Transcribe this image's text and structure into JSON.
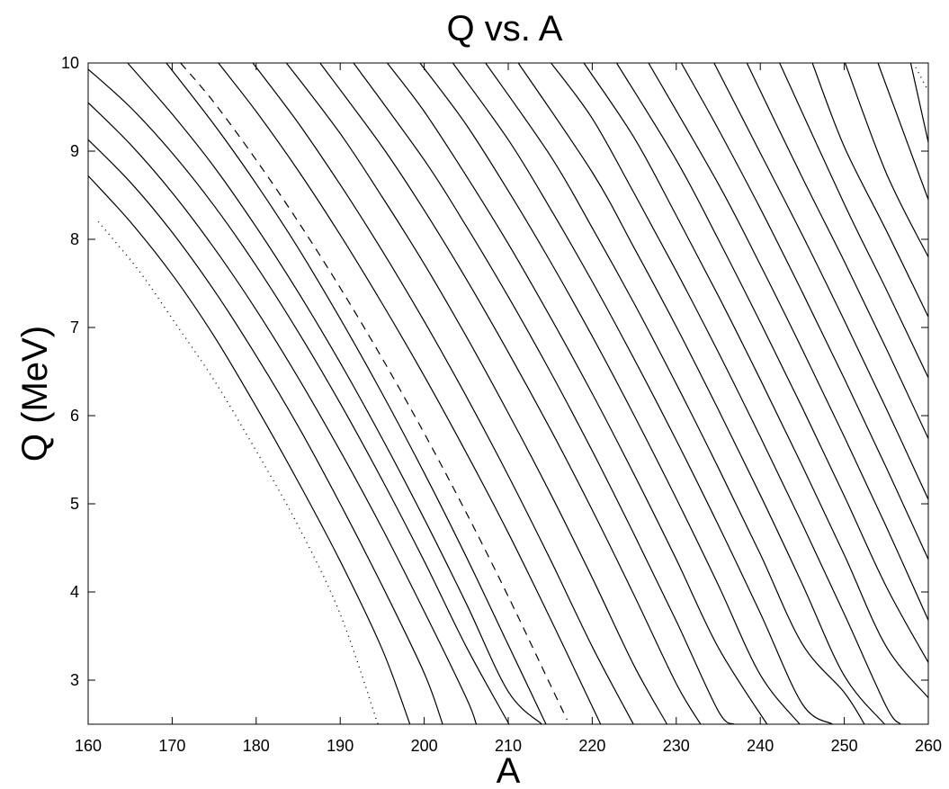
{
  "chart_data": {
    "type": "line",
    "title": "Q vs. A",
    "xlabel": "A",
    "ylabel": "Q (MeV)",
    "xlim": [
      160,
      260
    ],
    "ylim": [
      2.5,
      10
    ],
    "xticks": [
      "160",
      "170",
      "180",
      "190",
      "200",
      "210",
      "220",
      "230",
      "240",
      "250",
      "260"
    ],
    "yticks": [
      "3",
      "4",
      "5",
      "6",
      "7",
      "8",
      "9",
      "10"
    ],
    "grid": false,
    "legend": "none",
    "line_color": "#000000",
    "x_range_note": "A",
    "series": [
      {
        "style": "dotted",
        "points": [
          [
            161.2,
            8.2
          ],
          [
            166,
            7.65
          ],
          [
            170,
            7.1
          ],
          [
            175,
            6.4
          ],
          [
            180,
            5.6
          ],
          [
            185,
            4.75
          ],
          [
            190,
            3.75
          ],
          [
            194.5,
            2.5
          ]
        ]
      },
      {
        "style": "solid",
        "points": [
          [
            160,
            8.72
          ],
          [
            165,
            8.2
          ],
          [
            170,
            7.6
          ],
          [
            175,
            6.9
          ],
          [
            180,
            6.1
          ],
          [
            185,
            5.25
          ],
          [
            190,
            4.35
          ],
          [
            195,
            3.35
          ],
          [
            198.3,
            2.5
          ]
        ]
      },
      {
        "style": "solid",
        "points": [
          [
            160,
            9.13
          ],
          [
            165,
            8.65
          ],
          [
            170,
            8.08
          ],
          [
            175,
            7.42
          ],
          [
            180,
            6.68
          ],
          [
            185,
            5.88
          ],
          [
            190,
            5.0
          ],
          [
            195,
            4.07
          ],
          [
            200,
            3.08
          ],
          [
            202.2,
            2.5
          ]
        ]
      },
      {
        "style": "solid",
        "points": [
          [
            160,
            9.55
          ],
          [
            165,
            9.08
          ],
          [
            170,
            8.53
          ],
          [
            175,
            7.9
          ],
          [
            180,
            7.2
          ],
          [
            185,
            6.43
          ],
          [
            190,
            5.6
          ],
          [
            195,
            4.72
          ],
          [
            200,
            3.78
          ],
          [
            205,
            2.8
          ],
          [
            206.2,
            2.5
          ]
        ]
      },
      {
        "style": "solid",
        "points": [
          [
            160,
            9.93
          ],
          [
            165,
            9.5
          ],
          [
            170,
            8.98
          ],
          [
            175,
            8.38
          ],
          [
            180,
            7.7
          ],
          [
            185,
            6.95
          ],
          [
            190,
            6.14
          ],
          [
            195,
            5.27
          ],
          [
            200,
            4.35
          ],
          [
            205,
            3.38
          ],
          [
            210.1,
            2.5
          ]
        ]
      },
      {
        "style": "solid",
        "points": [
          [
            164.7,
            10.0
          ],
          [
            170,
            9.42
          ],
          [
            175,
            8.82
          ],
          [
            180,
            8.14
          ],
          [
            185,
            7.4
          ],
          [
            190,
            6.6
          ],
          [
            195,
            5.74
          ],
          [
            200,
            4.83
          ],
          [
            205,
            3.87
          ],
          [
            210,
            2.87
          ],
          [
            214,
            2.5
          ]
        ]
      },
      {
        "style": "solid",
        "points": [
          [
            169.3,
            10.0
          ],
          [
            175,
            9.3
          ],
          [
            180,
            8.63
          ],
          [
            185,
            7.9
          ],
          [
            190,
            7.1
          ],
          [
            195,
            6.25
          ],
          [
            200,
            5.35
          ],
          [
            205,
            4.4
          ],
          [
            210,
            3.4
          ],
          [
            214.5,
            2.5
          ]
        ]
      },
      {
        "style": "dashed",
        "points": [
          [
            171,
            10.0
          ],
          [
            175,
            9.55
          ],
          [
            180,
            8.9
          ],
          [
            185,
            8.2
          ],
          [
            190,
            7.45
          ],
          [
            195,
            6.65
          ],
          [
            200,
            5.8
          ],
          [
            205,
            4.9
          ],
          [
            210,
            3.95
          ],
          [
            215,
            2.95
          ],
          [
            217,
            2.55
          ]
        ]
      },
      {
        "style": "solid",
        "points": [
          [
            175.5,
            10.0
          ],
          [
            180,
            9.45
          ],
          [
            185,
            8.78
          ],
          [
            190,
            8.05
          ],
          [
            195,
            7.27
          ],
          [
            200,
            6.45
          ],
          [
            205,
            5.58
          ],
          [
            210,
            4.67
          ],
          [
            215,
            3.7
          ],
          [
            220,
            2.7
          ],
          [
            221,
            2.5
          ]
        ]
      },
      {
        "style": "solid",
        "points": [
          [
            179.6,
            10.0
          ],
          [
            185,
            9.32
          ],
          [
            190,
            8.62
          ],
          [
            195,
            7.87
          ],
          [
            200,
            7.07
          ],
          [
            205,
            6.22
          ],
          [
            210,
            5.32
          ],
          [
            215,
            4.37
          ],
          [
            220,
            3.38
          ],
          [
            224.9,
            2.5
          ]
        ]
      },
      {
        "style": "solid",
        "points": [
          [
            183.6,
            10.0
          ],
          [
            190,
            9.2
          ],
          [
            195,
            8.48
          ],
          [
            200,
            7.72
          ],
          [
            205,
            6.9
          ],
          [
            210,
            6.03
          ],
          [
            215,
            5.12
          ],
          [
            220,
            4.16
          ],
          [
            225,
            3.16
          ],
          [
            228.9,
            2.5
          ]
        ]
      },
      {
        "style": "solid",
        "points": [
          [
            187.6,
            10.0
          ],
          [
            195,
            9.05
          ],
          [
            200,
            8.33
          ],
          [
            205,
            7.55
          ],
          [
            210,
            6.72
          ],
          [
            215,
            5.85
          ],
          [
            220,
            4.93
          ],
          [
            225,
            3.96
          ],
          [
            230,
            2.96
          ],
          [
            232.9,
            2.5
          ]
        ]
      },
      {
        "style": "solid",
        "points": [
          [
            191.6,
            10.0
          ],
          [
            200,
            8.9
          ],
          [
            205,
            8.15
          ],
          [
            210,
            7.35
          ],
          [
            215,
            6.5
          ],
          [
            220,
            5.6
          ],
          [
            225,
            4.65
          ],
          [
            230,
            3.67
          ],
          [
            235,
            2.65
          ],
          [
            236.9,
            2.5
          ]
        ]
      },
      {
        "style": "solid",
        "points": [
          [
            195.6,
            10.0
          ],
          [
            200,
            9.45
          ],
          [
            205,
            8.72
          ],
          [
            210,
            7.95
          ],
          [
            215,
            7.12
          ],
          [
            220,
            6.25
          ],
          [
            225,
            5.33
          ],
          [
            230,
            4.37
          ],
          [
            235,
            3.37
          ],
          [
            240.8,
            2.5
          ]
        ]
      },
      {
        "style": "solid",
        "points": [
          [
            199.5,
            10.0
          ],
          [
            205,
            9.3
          ],
          [
            210,
            8.55
          ],
          [
            215,
            7.75
          ],
          [
            220,
            6.9
          ],
          [
            225,
            6.0
          ],
          [
            230,
            5.06
          ],
          [
            235,
            4.08
          ],
          [
            240,
            3.06
          ],
          [
            244.7,
            2.5
          ]
        ]
      },
      {
        "style": "solid",
        "points": [
          [
            203.4,
            10.0
          ],
          [
            210,
            9.13
          ],
          [
            215,
            8.35
          ],
          [
            220,
            7.52
          ],
          [
            225,
            6.64
          ],
          [
            230,
            5.72
          ],
          [
            235,
            4.76
          ],
          [
            240,
            3.76
          ],
          [
            245,
            2.73
          ],
          [
            248.6,
            2.5
          ]
        ]
      },
      {
        "style": "solid",
        "points": [
          [
            207.3,
            10.0
          ],
          [
            215,
            8.95
          ],
          [
            220,
            8.13
          ],
          [
            225,
            7.27
          ],
          [
            230,
            6.36
          ],
          [
            235,
            5.41
          ],
          [
            240,
            4.43
          ],
          [
            245,
            3.41
          ],
          [
            250,
            2.86
          ],
          [
            252.4,
            2.5
          ]
        ]
      },
      {
        "style": "solid",
        "points": [
          [
            211.2,
            10.0
          ],
          [
            220,
            8.76
          ],
          [
            225,
            7.9
          ],
          [
            230,
            7.01
          ],
          [
            235,
            6.07
          ],
          [
            240,
            5.1
          ],
          [
            245,
            4.09
          ],
          [
            250,
            3.05
          ],
          [
            254.8,
            2.5
          ]
        ]
      },
      {
        "style": "solid",
        "points": [
          [
            215.1,
            10.0
          ],
          [
            220,
            9.37
          ],
          [
            225,
            8.52
          ],
          [
            230,
            7.64
          ],
          [
            235,
            6.72
          ],
          [
            240,
            5.76
          ],
          [
            245,
            4.77
          ],
          [
            250,
            3.75
          ],
          [
            255,
            2.7
          ],
          [
            256.7,
            2.5
          ]
        ]
      },
      {
        "style": "solid",
        "points": [
          [
            219.0,
            10.0
          ],
          [
            225,
            9.15
          ],
          [
            230,
            8.27
          ],
          [
            235,
            7.36
          ],
          [
            240,
            6.41
          ],
          [
            245,
            5.43
          ],
          [
            250,
            4.42
          ],
          [
            255,
            3.38
          ],
          [
            260,
            2.8
          ]
        ]
      },
      {
        "style": "solid",
        "points": [
          [
            222.9,
            10.0
          ],
          [
            230,
            8.9
          ],
          [
            235,
            8.0
          ],
          [
            240,
            7.06
          ],
          [
            245,
            6.09
          ],
          [
            250,
            5.09
          ],
          [
            255,
            4.06
          ],
          [
            260,
            3.2
          ]
        ]
      },
      {
        "style": "solid",
        "points": [
          [
            226.7,
            10.0
          ],
          [
            235,
            8.63
          ],
          [
            240,
            7.71
          ],
          [
            245,
            6.75
          ],
          [
            250,
            5.76
          ],
          [
            255,
            4.74
          ],
          [
            260,
            3.68
          ]
        ]
      },
      {
        "style": "solid",
        "points": [
          [
            230.6,
            10.0
          ],
          [
            235,
            9.25
          ],
          [
            240,
            8.35
          ],
          [
            245,
            7.4
          ],
          [
            250,
            6.42
          ],
          [
            255,
            5.41
          ],
          [
            260,
            4.37
          ]
        ]
      },
      {
        "style": "solid",
        "points": [
          [
            234.5,
            10.0
          ],
          [
            240,
            8.98
          ],
          [
            245,
            8.05
          ],
          [
            250,
            7.08
          ],
          [
            255,
            6.08
          ],
          [
            260,
            5.05
          ]
        ]
      },
      {
        "style": "solid",
        "points": [
          [
            238.4,
            10.0
          ],
          [
            245,
            8.7
          ],
          [
            250,
            7.75
          ],
          [
            255,
            6.76
          ],
          [
            260,
            5.74
          ]
        ]
      },
      {
        "style": "solid",
        "points": [
          [
            242.3,
            10.0
          ],
          [
            250,
            8.4
          ],
          [
            255,
            7.43
          ],
          [
            260,
            6.43
          ]
        ]
      },
      {
        "style": "solid",
        "points": [
          [
            246.2,
            10.0
          ],
          [
            250,
            9.05
          ],
          [
            255,
            8.1
          ],
          [
            260,
            7.12
          ]
        ]
      },
      {
        "style": "solid",
        "points": [
          [
            250.1,
            10.0
          ],
          [
            255,
            8.75
          ],
          [
            260,
            7.8
          ]
        ]
      },
      {
        "style": "solid",
        "points": [
          [
            254.0,
            10.0
          ],
          [
            260,
            8.45
          ]
        ]
      },
      {
        "style": "solid",
        "points": [
          [
            257.9,
            10.0
          ],
          [
            260,
            9.1
          ]
        ]
      },
      {
        "style": "dotted",
        "points": [
          [
            258.5,
            9.95
          ],
          [
            260,
            9.68
          ]
        ]
      }
    ]
  }
}
